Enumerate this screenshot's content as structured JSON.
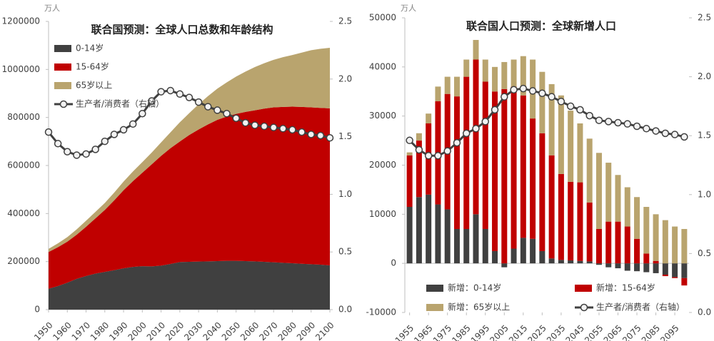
{
  "chart_data": [
    {
      "type": "area",
      "title": "联合国预测：全球人口总数和年龄结构",
      "unit": "万人",
      "legend": "upper left",
      "x": [
        1950,
        1955,
        1960,
        1965,
        1970,
        1975,
        1980,
        1985,
        1990,
        1995,
        2000,
        2005,
        2010,
        2015,
        2020,
        2025,
        2030,
        2035,
        2040,
        2045,
        2050,
        2055,
        2060,
        2065,
        2070,
        2075,
        2080,
        2085,
        2090,
        2095,
        2100
      ],
      "xlim": [
        1950,
        2100
      ],
      "xticks": [
        1950,
        1960,
        1970,
        1980,
        1990,
        2000,
        2010,
        2020,
        2030,
        2040,
        2050,
        2060,
        2070,
        2080,
        2090,
        2100
      ],
      "ylim": [
        0,
        1200000
      ],
      "yticks": [
        0,
        200000,
        400000,
        600000,
        800000,
        1000000,
        1200000
      ],
      "y2lim": [
        0,
        2.5
      ],
      "y2ticks": [
        {
          "value": 0,
          "label": "0.0"
        },
        0.5,
        {
          "value": 1,
          "label": "1.0"
        },
        1.5,
        {
          "value": 2,
          "label": "2.0"
        },
        2.5
      ],
      "series": [
        {
          "name": "0-14岁",
          "color": "#404040",
          "values": [
            87000,
            98000,
            112000,
            128000,
            140000,
            150000,
            157000,
            164000,
            172000,
            178000,
            181000,
            180000,
            183000,
            190000,
            198000,
            199000,
            200000,
            201000,
            202000,
            203000,
            203000,
            202000,
            201000,
            199000,
            197000,
            195000,
            193000,
            191000,
            189000,
            187000,
            184000
          ]
        },
        {
          "name": "15-64岁",
          "color": "#c00000",
          "values": [
            153000,
            162000,
            171000,
            184000,
            205000,
            230000,
            258000,
            291000,
            325000,
            357000,
            389000,
            425000,
            457000,
            482000,
            502000,
            528000,
            550000,
            570000,
            588000,
            601000,
            612000,
            621000,
            629000,
            638000,
            645000,
            649000,
            652000,
            653000,
            653000,
            653000,
            654000
          ]
        },
        {
          "name": "65岁以上",
          "color": "#b9a46e",
          "values": [
            13000,
            16000,
            19000,
            22000,
            25000,
            27000,
            29000,
            32000,
            36000,
            40000,
            44000,
            49000,
            56000,
            66000,
            80000,
            91000,
            105000,
            118000,
            130000,
            142000,
            155000,
            168000,
            180000,
            189000,
            198000,
            207000,
            215000,
            226000,
            238000,
            246000,
            252000
          ]
        },
        {
          "name": "生产者/消费者（右轴）",
          "color": "#404040",
          "type": "line",
          "axis": "y2",
          "values": [
            1.54,
            1.44,
            1.37,
            1.34,
            1.35,
            1.39,
            1.46,
            1.52,
            1.56,
            1.61,
            1.7,
            1.81,
            1.89,
            1.9,
            1.87,
            1.84,
            1.8,
            1.76,
            1.73,
            1.7,
            1.66,
            1.62,
            1.6,
            1.59,
            1.58,
            1.57,
            1.56,
            1.54,
            1.52,
            1.51,
            1.49
          ]
        }
      ]
    },
    {
      "type": "bar",
      "title": "联合国人口预测：全球新增人口",
      "unit": "万人",
      "legend": "lower center",
      "x": [
        1955,
        1960,
        1965,
        1970,
        1975,
        1980,
        1985,
        1990,
        1995,
        2000,
        2005,
        2010,
        2015,
        2020,
        2025,
        2030,
        2035,
        2040,
        2045,
        2050,
        2055,
        2060,
        2065,
        2070,
        2075,
        2080,
        2085,
        2090,
        2095,
        2100
      ],
      "xlim": [
        1952.5,
        2102.5
      ],
      "xticks": [
        1955,
        1965,
        1975,
        1985,
        1995,
        2005,
        2015,
        2025,
        2035,
        2045,
        2055,
        2065,
        2075,
        2085,
        2095
      ],
      "ylim": [
        -10000,
        50000
      ],
      "yticks": [
        -10000,
        0,
        10000,
        20000,
        30000,
        40000,
        50000
      ],
      "y2lim": [
        0,
        2.5
      ],
      "y2ticks": [
        {
          "value": 0,
          "label": "0.0"
        },
        0.5,
        {
          "value": 1,
          "label": "1.0"
        },
        1.5,
        {
          "value": 2,
          "label": "2.0"
        },
        2.5
      ],
      "series": [
        {
          "name": "新增：0-14岁",
          "color": "#404040",
          "values": [
            11500,
            13500,
            14000,
            12000,
            11000,
            7000,
            7000,
            10000,
            7000,
            2500,
            -800,
            3000,
            5200,
            5000,
            2500,
            1000,
            700,
            600,
            500,
            400,
            -300,
            -800,
            -1000,
            -1500,
            -1600,
            -1800,
            -2000,
            -2300,
            -2800,
            -3000
          ]
        },
        {
          "name": "新增：15-64岁",
          "color": "#c00000",
          "values": [
            10500,
            11500,
            14500,
            21000,
            23500,
            27000,
            31000,
            31500,
            30000,
            32500,
            35500,
            33000,
            29000,
            24500,
            24000,
            21000,
            17500,
            16000,
            16000,
            12000,
            7000,
            8500,
            8500,
            7500,
            5000,
            2000,
            500,
            -300,
            -200,
            -1500
          ]
        },
        {
          "name": "新增：65岁以上",
          "color": "#b9a46e",
          "values": [
            600,
            1500,
            2000,
            3000,
            3500,
            4000,
            3500,
            4000,
            4500,
            5000,
            5500,
            5500,
            8000,
            12000,
            12500,
            14500,
            16000,
            14500,
            12000,
            13000,
            15500,
            12000,
            9500,
            8000,
            8500,
            9500,
            9500,
            8800,
            7500,
            7000
          ]
        },
        {
          "name": "生产者/消费者（右轴）",
          "color": "#404040",
          "type": "line",
          "axis": "y2",
          "values": [
            1.46,
            1.38,
            1.33,
            1.33,
            1.37,
            1.44,
            1.52,
            1.56,
            1.62,
            1.72,
            1.83,
            1.89,
            1.9,
            1.88,
            1.86,
            1.83,
            1.79,
            1.75,
            1.72,
            1.67,
            1.63,
            1.62,
            1.61,
            1.6,
            1.58,
            1.56,
            1.54,
            1.52,
            1.51,
            1.49
          ]
        }
      ]
    }
  ]
}
